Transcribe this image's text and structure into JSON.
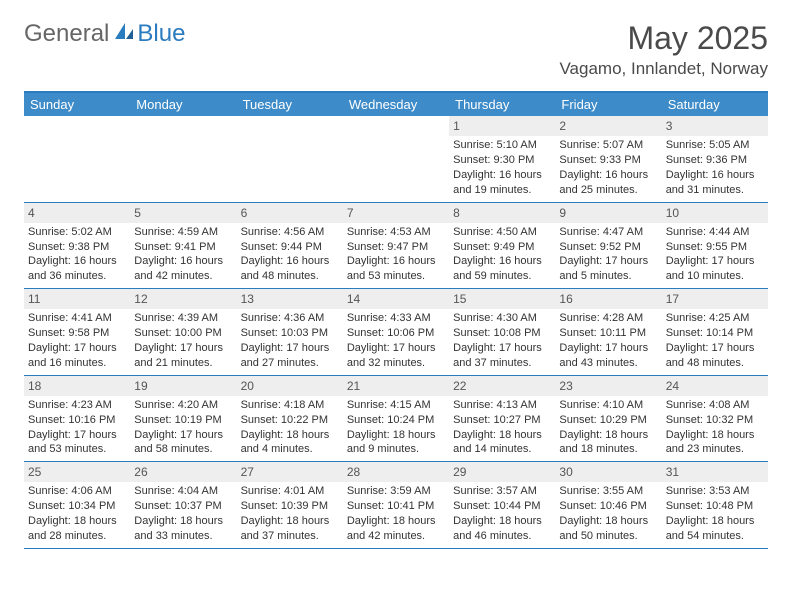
{
  "logo": {
    "general": "General",
    "blue": "Blue"
  },
  "header": {
    "title": "May 2025",
    "location": "Vagamo, Innlandet, Norway"
  },
  "colors": {
    "brand_blue": "#2b7bbf",
    "header_blue": "#3d8bc8",
    "daynum_bg": "#eeeeee",
    "text_gray": "#4a4a4a",
    "cell_text": "#333333"
  },
  "day_names": [
    "Sunday",
    "Monday",
    "Tuesday",
    "Wednesday",
    "Thursday",
    "Friday",
    "Saturday"
  ],
  "first_weekday_index": 4,
  "days_in_month": 31,
  "days": {
    "1": {
      "sunrise": "5:10 AM",
      "sunset": "9:30 PM",
      "daylight": "16 hours and 19 minutes."
    },
    "2": {
      "sunrise": "5:07 AM",
      "sunset": "9:33 PM",
      "daylight": "16 hours and 25 minutes."
    },
    "3": {
      "sunrise": "5:05 AM",
      "sunset": "9:36 PM",
      "daylight": "16 hours and 31 minutes."
    },
    "4": {
      "sunrise": "5:02 AM",
      "sunset": "9:38 PM",
      "daylight": "16 hours and 36 minutes."
    },
    "5": {
      "sunrise": "4:59 AM",
      "sunset": "9:41 PM",
      "daylight": "16 hours and 42 minutes."
    },
    "6": {
      "sunrise": "4:56 AM",
      "sunset": "9:44 PM",
      "daylight": "16 hours and 48 minutes."
    },
    "7": {
      "sunrise": "4:53 AM",
      "sunset": "9:47 PM",
      "daylight": "16 hours and 53 minutes."
    },
    "8": {
      "sunrise": "4:50 AM",
      "sunset": "9:49 PM",
      "daylight": "16 hours and 59 minutes."
    },
    "9": {
      "sunrise": "4:47 AM",
      "sunset": "9:52 PM",
      "daylight": "17 hours and 5 minutes."
    },
    "10": {
      "sunrise": "4:44 AM",
      "sunset": "9:55 PM",
      "daylight": "17 hours and 10 minutes."
    },
    "11": {
      "sunrise": "4:41 AM",
      "sunset": "9:58 PM",
      "daylight": "17 hours and 16 minutes."
    },
    "12": {
      "sunrise": "4:39 AM",
      "sunset": "10:00 PM",
      "daylight": "17 hours and 21 minutes."
    },
    "13": {
      "sunrise": "4:36 AM",
      "sunset": "10:03 PM",
      "daylight": "17 hours and 27 minutes."
    },
    "14": {
      "sunrise": "4:33 AM",
      "sunset": "10:06 PM",
      "daylight": "17 hours and 32 minutes."
    },
    "15": {
      "sunrise": "4:30 AM",
      "sunset": "10:08 PM",
      "daylight": "17 hours and 37 minutes."
    },
    "16": {
      "sunrise": "4:28 AM",
      "sunset": "10:11 PM",
      "daylight": "17 hours and 43 minutes."
    },
    "17": {
      "sunrise": "4:25 AM",
      "sunset": "10:14 PM",
      "daylight": "17 hours and 48 minutes."
    },
    "18": {
      "sunrise": "4:23 AM",
      "sunset": "10:16 PM",
      "daylight": "17 hours and 53 minutes."
    },
    "19": {
      "sunrise": "4:20 AM",
      "sunset": "10:19 PM",
      "daylight": "17 hours and 58 minutes."
    },
    "20": {
      "sunrise": "4:18 AM",
      "sunset": "10:22 PM",
      "daylight": "18 hours and 4 minutes."
    },
    "21": {
      "sunrise": "4:15 AM",
      "sunset": "10:24 PM",
      "daylight": "18 hours and 9 minutes."
    },
    "22": {
      "sunrise": "4:13 AM",
      "sunset": "10:27 PM",
      "daylight": "18 hours and 14 minutes."
    },
    "23": {
      "sunrise": "4:10 AM",
      "sunset": "10:29 PM",
      "daylight": "18 hours and 18 minutes."
    },
    "24": {
      "sunrise": "4:08 AM",
      "sunset": "10:32 PM",
      "daylight": "18 hours and 23 minutes."
    },
    "25": {
      "sunrise": "4:06 AM",
      "sunset": "10:34 PM",
      "daylight": "18 hours and 28 minutes."
    },
    "26": {
      "sunrise": "4:04 AM",
      "sunset": "10:37 PM",
      "daylight": "18 hours and 33 minutes."
    },
    "27": {
      "sunrise": "4:01 AM",
      "sunset": "10:39 PM",
      "daylight": "18 hours and 37 minutes."
    },
    "28": {
      "sunrise": "3:59 AM",
      "sunset": "10:41 PM",
      "daylight": "18 hours and 42 minutes."
    },
    "29": {
      "sunrise": "3:57 AM",
      "sunset": "10:44 PM",
      "daylight": "18 hours and 46 minutes."
    },
    "30": {
      "sunrise": "3:55 AM",
      "sunset": "10:46 PM",
      "daylight": "18 hours and 50 minutes."
    },
    "31": {
      "sunrise": "3:53 AM",
      "sunset": "10:48 PM",
      "daylight": "18 hours and 54 minutes."
    }
  },
  "labels": {
    "sunrise": "Sunrise:",
    "sunset": "Sunset:",
    "daylight": "Daylight:"
  }
}
